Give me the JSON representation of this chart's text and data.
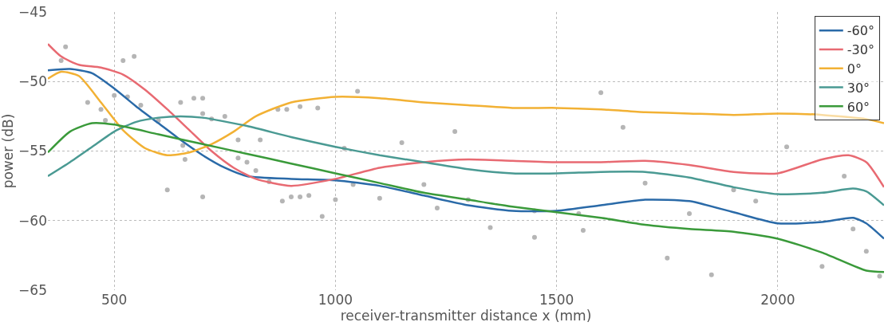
{
  "chart_data": {
    "type": "line",
    "xlabel": "receiver-transmitter distance x (mm)",
    "ylabel": "power (dB)",
    "xlim": [
      350,
      2240
    ],
    "xticks": [
      500,
      1000,
      1500,
      2000
    ],
    "ylim": [
      -65,
      -45
    ],
    "yticks": [
      -65,
      -60,
      -55,
      -50,
      -45
    ],
    "grid": true,
    "legend": "top right",
    "marker": "none",
    "line_style": "solid",
    "series": [
      {
        "type": "scatter",
        "color": "#b5b5b5",
        "marker": "circle",
        "x": [
          390,
          380,
          520,
          545,
          440,
          470,
          500,
          530,
          480,
          560,
          600,
          650,
          680,
          700,
          750,
          700,
          720,
          655,
          660,
          620,
          700,
          780,
          800,
          780,
          830,
          820,
          850,
          870,
          890,
          920,
          960,
          880,
          900,
          920,
          940,
          970,
          1000,
          1020,
          1050,
          1040,
          1100,
          1150,
          1200,
          1230,
          1270,
          1300,
          1350,
          1450,
          1450,
          1550,
          1560,
          1600,
          1650,
          1700,
          1750,
          1800,
          1850,
          1900,
          1950,
          2020,
          2100,
          2150,
          2170,
          2200,
          2230
        ],
        "values": [
          -47.5,
          -48.5,
          -48.5,
          -48.2,
          -51.5,
          -52,
          -51,
          -51.1,
          -52.8,
          -51.7,
          -52.8,
          -51.5,
          -51.2,
          -51.2,
          -52.5,
          -52.3,
          -52.7,
          -54.6,
          -55.6,
          -57.8,
          -58.3,
          -55.5,
          -55.8,
          -54.2,
          -54.2,
          -56.4,
          -57.2,
          -52,
          -52,
          -51.8,
          -51.9,
          -58.6,
          -58.3,
          -58.3,
          -58.2,
          -59.7,
          -58.5,
          -54.8,
          -50.7,
          -57.4,
          -58.4,
          -54.4,
          -57.4,
          -59.1,
          -53.6,
          -58.5,
          -60.5,
          -59.3,
          -61.2,
          -59.5,
          -60.7,
          -50.8,
          -53.3,
          -57.3,
          -62.7,
          -59.5,
          -63.9,
          -57.8,
          -58.6,
          -54.7,
          -63.3,
          -56.8,
          -60.6,
          -62.2,
          -64.0
        ]
      },
      {
        "name": "-60°",
        "color": "#2a6aa8",
        "x": [
          350,
          400,
          450,
          500,
          550,
          600,
          650,
          700,
          750,
          800,
          900,
          1000,
          1100,
          1200,
          1300,
          1400,
          1500,
          1600,
          1700,
          1800,
          1900,
          2000,
          2100,
          2170,
          2200,
          2240
        ],
        "values": [
          -49.2,
          -49.1,
          -49.4,
          -50.5,
          -51.8,
          -53.0,
          -54.2,
          -55.3,
          -56.2,
          -56.8,
          -57.0,
          -57.1,
          -57.5,
          -58.2,
          -58.9,
          -59.3,
          -59.3,
          -58.9,
          -58.5,
          -58.6,
          -59.4,
          -60.2,
          -60.1,
          -59.8,
          -60.2,
          -61.3
        ]
      },
      {
        "name": "-30°",
        "color": "#e86a72",
        "x": [
          350,
          380,
          420,
          470,
          520,
          570,
          620,
          670,
          720,
          770,
          820,
          900,
          1000,
          1100,
          1200,
          1300,
          1400,
          1500,
          1600,
          1700,
          1800,
          1900,
          2000,
          2100,
          2160,
          2200,
          2240
        ],
        "values": [
          -47.3,
          -48.2,
          -48.8,
          -49.0,
          -49.5,
          -50.6,
          -52.0,
          -53.5,
          -55.0,
          -56.2,
          -57.0,
          -57.5,
          -57.0,
          -56.2,
          -55.8,
          -55.6,
          -55.7,
          -55.8,
          -55.8,
          -55.7,
          -56.0,
          -56.5,
          -56.6,
          -55.6,
          -55.3,
          -55.8,
          -57.6
        ]
      },
      {
        "name": "0°",
        "color": "#f2b134",
        "x": [
          350,
          380,
          420,
          470,
          520,
          570,
          620,
          670,
          720,
          770,
          820,
          900,
          1000,
          1100,
          1200,
          1300,
          1400,
          1500,
          1600,
          1700,
          1800,
          1900,
          2000,
          2100,
          2200,
          2240
        ],
        "values": [
          -49.8,
          -49.3,
          -49.6,
          -51.5,
          -53.5,
          -54.8,
          -55.3,
          -55.1,
          -54.5,
          -53.6,
          -52.5,
          -51.5,
          -51.1,
          -51.2,
          -51.5,
          -51.7,
          -51.9,
          -51.9,
          -52.0,
          -52.2,
          -52.3,
          -52.4,
          -52.3,
          -52.4,
          -52.7,
          -53.0
        ]
      },
      {
        "name": "30°",
        "color": "#4a9a93",
        "x": [
          350,
          400,
          450,
          500,
          550,
          600,
          650,
          700,
          800,
          900,
          1000,
          1100,
          1200,
          1300,
          1400,
          1500,
          1600,
          1700,
          1800,
          1900,
          2000,
          2100,
          2170,
          2200,
          2240
        ],
        "values": [
          -56.8,
          -55.8,
          -54.7,
          -53.6,
          -52.9,
          -52.6,
          -52.5,
          -52.6,
          -53.2,
          -54.0,
          -54.7,
          -55.3,
          -55.8,
          -56.3,
          -56.6,
          -56.6,
          -56.5,
          -56.5,
          -56.9,
          -57.6,
          -58.1,
          -58.0,
          -57.7,
          -57.9,
          -58.9
        ]
      },
      {
        "name": "60°",
        "color": "#3a9a3a",
        "x": [
          350,
          400,
          450,
          500,
          600,
          700,
          800,
          900,
          1000,
          1100,
          1200,
          1300,
          1400,
          1500,
          1600,
          1700,
          1800,
          1900,
          2000,
          2100,
          2200,
          2240
        ],
        "values": [
          -55.1,
          -53.6,
          -53.0,
          -53.1,
          -53.8,
          -54.5,
          -55.2,
          -55.9,
          -56.6,
          -57.3,
          -58.0,
          -58.5,
          -59.0,
          -59.4,
          -59.8,
          -60.3,
          -60.6,
          -60.8,
          -61.3,
          -62.3,
          -63.6,
          -63.7
        ]
      }
    ]
  }
}
